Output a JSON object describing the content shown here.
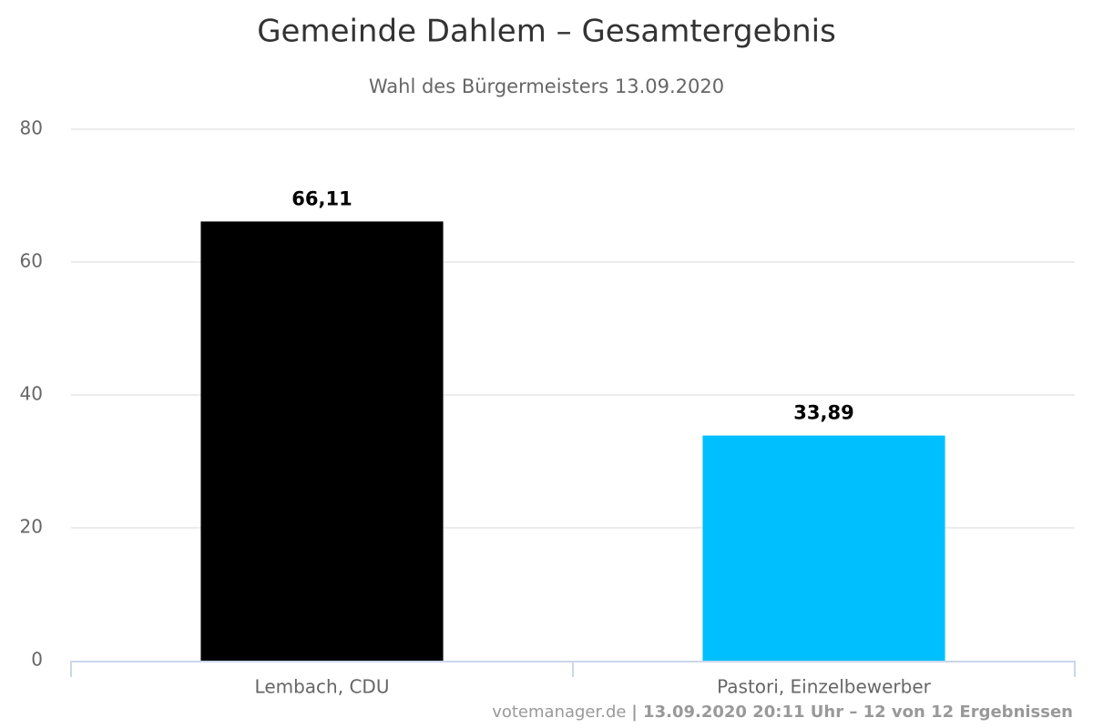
{
  "chart_data": {
    "type": "bar",
    "title": "Gemeinde Dahlem – Gesamtergebnis",
    "subtitle": "Wahl des Bürgermeisters 13.09.2020",
    "categories": [
      "Lembach, CDU",
      "Pastori, Einzelbewerber"
    ],
    "values": [
      66.11,
      33.89
    ],
    "value_labels": [
      "66,11",
      "33,89"
    ],
    "colors": [
      "#000000",
      "#00bfff"
    ],
    "ylim": [
      0,
      80
    ],
    "yticks": [
      0,
      20,
      40,
      60,
      80
    ],
    "grid": true,
    "credits": [
      "votemanager.de",
      "| 13.09.2020 20:11 Uhr – 12 von 12 Ergebnissen"
    ]
  }
}
